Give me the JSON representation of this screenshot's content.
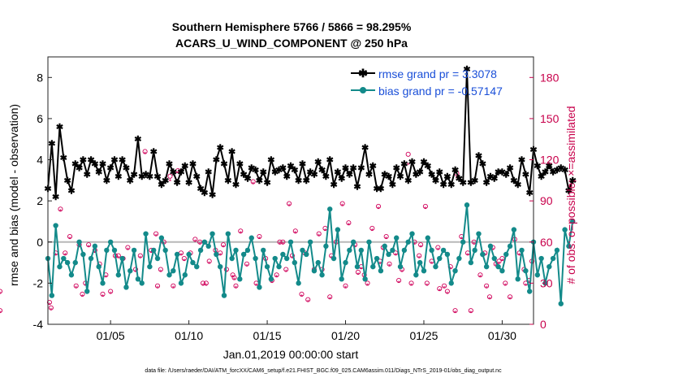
{
  "chart_data": {
    "type": "line",
    "title_line1": "Southern Hemisphere 5766 / 5866 = 98.295%",
    "title_line2": "ACARS_U_WIND_COMPONENT @ 250 hPa",
    "xlabel": "Jan.01,2019 00:00:00 start",
    "ylabel_left": "rmse and bias (model - observation)",
    "ylabel_right": "# of obs: o=possible; ×=assimilated",
    "footer": "data file: /Users/raeder/DAI/ATM_forcXX/CAM6_setup/f.e21.FHIST_BGC.f09_025.CAM6assim.011/Diags_NTrS_2019-01/obs_diag_output.nc",
    "xlim": [
      1.0,
      32.0
    ],
    "ylim_left": [
      -4,
      9
    ],
    "ylim_right": [
      0,
      195
    ],
    "x_ticks": [
      5,
      10,
      15,
      20,
      25,
      30
    ],
    "x_tick_labels": [
      "01/05",
      "01/10",
      "01/15",
      "01/20",
      "01/25",
      "01/30"
    ],
    "y_ticks_left": [
      -4,
      -2,
      0,
      2,
      4,
      6,
      8
    ],
    "y_tick_labels_left": [
      "-4",
      "-2",
      "0",
      "2",
      "4",
      "6",
      "8"
    ],
    "y_ticks_right": [
      0,
      30,
      60,
      90,
      120,
      150,
      180
    ],
    "y_tick_labels_right": [
      "0",
      "30",
      "60",
      "90",
      "120",
      "150",
      "180"
    ],
    "x_start": 1.0,
    "x_step": 0.25,
    "series": [
      {
        "name": "rmse",
        "legend": "rmse grand pr = 3.3078",
        "color": "#000000",
        "values": [
          2.6,
          4.8,
          2.2,
          5.6,
          4.1,
          3.0,
          2.5,
          3.8,
          3.6,
          4.0,
          3.3,
          4.0,
          3.8,
          3.4,
          3.8,
          3.0,
          3.6,
          4.0,
          3.2,
          4.0,
          3.6,
          3.0,
          3.3,
          5.0,
          3.2,
          3.3,
          3.2,
          4.4,
          3.2,
          2.8,
          3.0,
          3.8,
          3.4,
          2.9,
          3.4,
          3.7,
          2.9,
          3.8,
          3.2,
          2.6,
          2.4,
          3.4,
          2.3,
          4.0,
          4.6,
          3.8,
          3.0,
          4.4,
          2.8,
          3.8,
          3.3,
          3.1,
          3.6,
          3.5,
          3.0,
          3.4,
          2.9,
          4.0,
          3.4,
          3.5,
          3.6,
          3.2,
          3.7,
          3.5,
          3.0,
          3.8,
          3.0,
          3.4,
          3.3,
          3.9,
          3.5,
          3.2,
          4.0,
          2.8,
          3.4,
          3.1,
          3.6,
          3.3,
          3.6,
          2.7,
          3.6,
          4.6,
          3.3,
          3.7,
          2.6,
          2.6,
          3.3,
          3.2,
          2.8,
          3.6,
          3.2,
          3.8,
          3.0,
          3.9,
          3.3,
          3.4,
          3.9,
          3.7,
          3.3,
          3.0,
          3.4,
          2.8,
          3.2,
          2.8,
          3.5,
          3.1,
          2.9,
          8.4,
          2.9,
          3.0,
          4.2,
          3.8,
          2.9,
          3.2,
          3.1,
          3.4,
          3.4,
          3.3,
          3.6,
          3.0,
          2.8,
          4.0,
          3.3,
          2.4,
          4.5,
          3.7,
          3.2,
          3.4,
          3.7,
          3.4,
          3.5,
          3.6,
          3.5,
          2.5,
          3.0
        ],
        "values_note": "rmse sampled every 6 hours"
      },
      {
        "name": "bias",
        "legend": "bias grand pr = -0.57147",
        "color": "#138a8a",
        "values": [
          -0.8,
          -2.6,
          0.8,
          -1.2,
          -0.8,
          -1.0,
          -1.6,
          -1.0,
          0.0,
          -0.6,
          -2.4,
          -0.8,
          -0.2,
          -1.2,
          -2.0,
          -0.4,
          0.0,
          -0.4,
          -1.6,
          -0.8,
          -2.2,
          -1.4,
          -0.4,
          -1.8,
          -2.0,
          0.4,
          -1.2,
          -0.4,
          -0.8,
          0.2,
          -0.4,
          -1.6,
          -1.4,
          -0.6,
          -2.0,
          -1.6,
          -0.6,
          -1.0,
          -1.2,
          -0.4,
          0.0,
          -0.2,
          0.4,
          -0.6,
          -1.2,
          -2.6,
          0.4,
          -0.8,
          -0.4,
          -1.8,
          -0.6,
          -0.4,
          0.2,
          -0.8,
          -2.2,
          -0.4,
          -1.2,
          -1.8,
          -0.8,
          -1.2,
          -0.6,
          -0.8,
          0.0,
          -1.0,
          -2.0,
          -0.4,
          -0.6,
          0.0,
          -1.4,
          -1.0,
          -1.6,
          -0.2,
          1.6,
          -0.8,
          0.6,
          -1.8,
          -1.0,
          -0.4,
          0.0,
          -1.2,
          -0.4,
          -1.8,
          0.0,
          -1.2,
          -0.8,
          -1.4,
          -0.2,
          -0.6,
          -0.4,
          0.2,
          -1.2,
          -0.4,
          0.0,
          0.4,
          -1.6,
          -1.0,
          -1.4,
          0.2,
          -0.4,
          -1.2,
          -0.8,
          -0.4,
          -0.6,
          -2.0,
          -1.4,
          -0.8,
          0.0,
          1.8,
          -1.0,
          -0.4,
          0.4,
          -0.6,
          -1.2,
          -0.2,
          -0.8,
          -1.2,
          -1.4,
          -0.6,
          -0.2,
          0.6,
          -1.8,
          -0.4,
          -1.4,
          -2.4,
          0.0,
          -1.6,
          -0.8,
          -2.0,
          -1.2,
          -0.8,
          -0.4,
          -3.0,
          0.6,
          -0.2,
          1.0
        ],
        "values_note": "bias sampled every 6 hours"
      }
    ],
    "obs_possible": [
      12,
      52,
      84,
      64,
      28,
      22,
      58,
      54,
      44,
      36,
      24,
      50,
      48,
      56,
      40,
      126,
      54,
      28,
      60,
      108,
      112,
      48,
      52,
      62,
      30,
      46,
      54,
      52,
      40,
      34,
      68,
      44,
      104,
      64,
      48,
      32,
      36,
      60,
      88,
      68,
      22,
      18,
      40,
      66,
      70,
      50,
      60,
      88,
      74,
      58,
      42,
      30,
      70,
      86,
      56,
      44,
      52,
      40,
      124,
      60,
      50,
      86,
      46,
      56,
      28,
      42,
      110,
      64,
      52,
      60,
      36,
      28,
      56,
      46,
      30,
      20,
      62,
      52,
      40,
      32,
      58,
      50,
      60,
      28,
      40,
      20,
      64,
      30,
      52,
      46,
      22,
      40,
      58,
      52,
      36,
      30,
      10,
      44,
      52,
      50,
      28,
      30,
      40,
      32,
      26,
      48,
      16,
      66,
      30,
      60,
      38,
      24,
      20,
      30,
      36,
      50,
      28,
      58,
      10,
      30,
      52,
      46,
      24,
      10
    ],
    "obs_assimilated": [
      10,
      50,
      82,
      62,
      26,
      20,
      56,
      52,
      42,
      34,
      22,
      48,
      46,
      54,
      38,
      124,
      52,
      26,
      58,
      104,
      110,
      46,
      50,
      60,
      28,
      44,
      52,
      50,
      38,
      32,
      66,
      42,
      102,
      62,
      46,
      30,
      34,
      58,
      86,
      66,
      20,
      16,
      38,
      64,
      68,
      48,
      58,
      86,
      72,
      56,
      40,
      28,
      68,
      84,
      54,
      42,
      50,
      38,
      116,
      58,
      48,
      84,
      44,
      54,
      26,
      40,
      106,
      62,
      50,
      58,
      34,
      26,
      54,
      44,
      28,
      18,
      60,
      50,
      38,
      30,
      56,
      48,
      58,
      26,
      38,
      18,
      62,
      28,
      50,
      44,
      20,
      38,
      56,
      50,
      34,
      28,
      8,
      42,
      50,
      48,
      26,
      28,
      38,
      30,
      24,
      46,
      14,
      64,
      28,
      58,
      36,
      22,
      18,
      28,
      34,
      48,
      26,
      56,
      8,
      28,
      50,
      44,
      22,
      8
    ],
    "obs_x": [
      1.2,
      1.5,
      1.8,
      2.4,
      2.8,
      3.2,
      3.6,
      4.0,
      4.3,
      4.7,
      5.0,
      5.3,
      5.8,
      6.1,
      6.6,
      7.2,
      7.6,
      8.0,
      8.4,
      8.8,
      9.3,
      9.7,
      10.1,
      10.4,
      10.9,
      11.3,
      11.7,
      12.0,
      12.4,
      12.9,
      13.3,
      13.7,
      14.1,
      14.5,
      14.9,
      15.3,
      15.6,
      16.0,
      16.4,
      16.8,
      17.2,
      17.6,
      18.0,
      18.3,
      18.7,
      19.1,
      19.4,
      19.8,
      20.2,
      20.6,
      21.0,
      21.4,
      21.7,
      22.1,
      22.4,
      22.8,
      23.2,
      23.6,
      24.0,
      24.4,
      24.7,
      25.1,
      25.5,
      25.9,
      26.3,
      26.7,
      27.1,
      27.4,
      27.8,
      28.2,
      28.6,
      29.0,
      29.4,
      29.8,
      30.2,
      30.5,
      30.8,
      31.1,
      31.4,
      31.7,
      3.0,
      6.9,
      10.7,
      13.0,
      16.2,
      19.0,
      22.6,
      25.2,
      28.9,
      31.9,
      4.5,
      8.2,
      12.2,
      17.4,
      21.2,
      24.2,
      27.0,
      29.6,
      2.1,
      5.5,
      9.0,
      14.3,
      18.5,
      23.4,
      26.0,
      30.0,
      1.1,
      7.9,
      11.1,
      15.8,
      20.8,
      26.5,
      29.2,
      31.5,
      12.8,
      16.6,
      20.0,
      24.8,
      28.0,
      3.4,
      9.5,
      22.2
    ]
  }
}
